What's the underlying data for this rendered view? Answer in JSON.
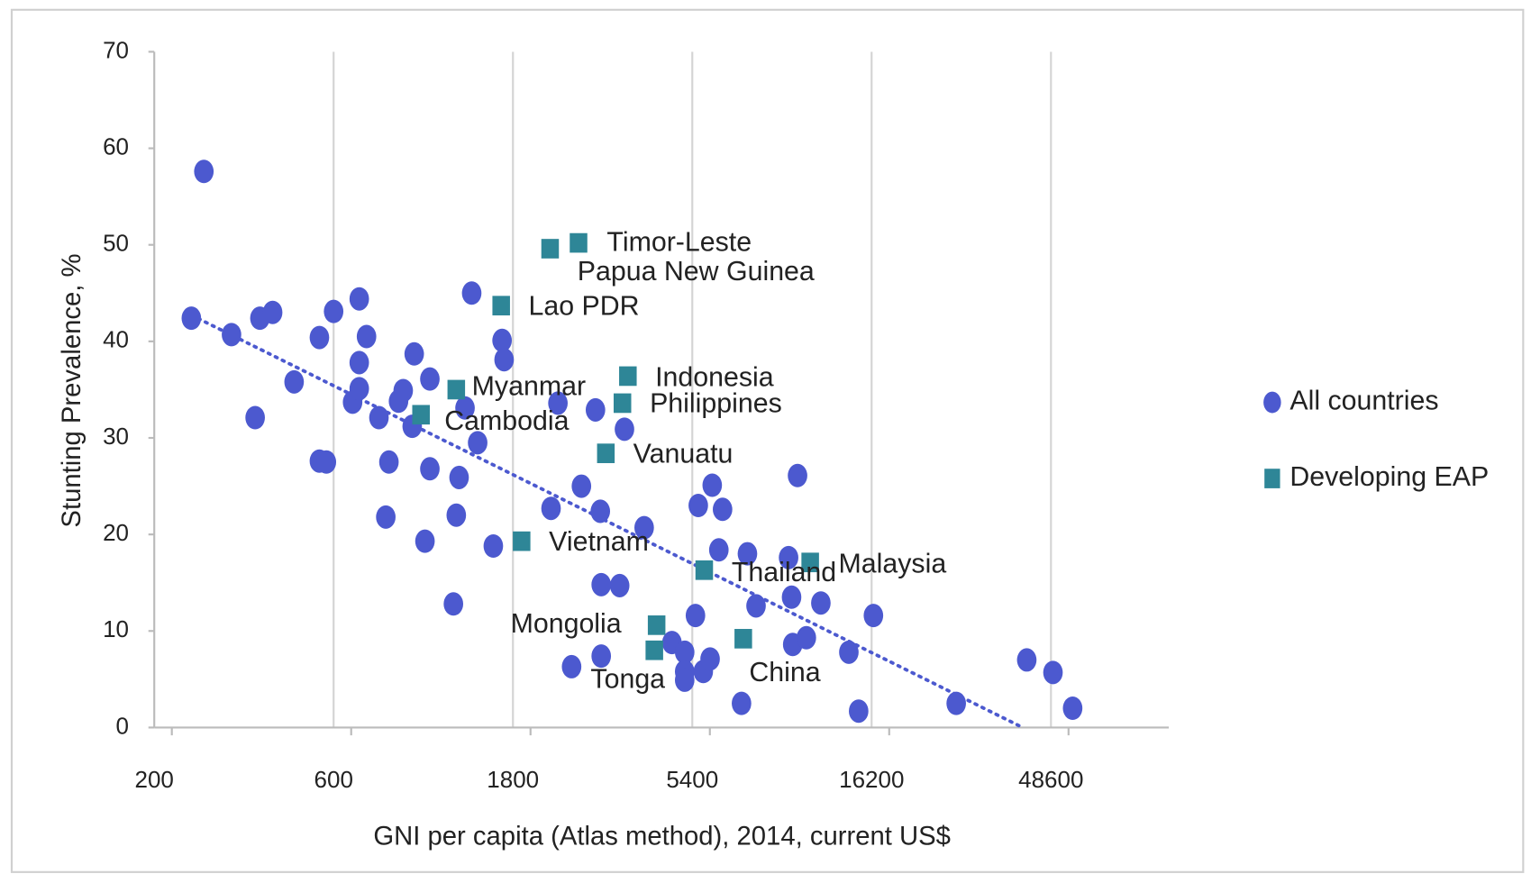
{
  "chart_data": {
    "type": "scatter",
    "x_label": "GNI per capita (Atlas method), 2014, current US$",
    "y_label": "Stunting Prevalence, %",
    "xscale": "log",
    "xlim": [
      200,
      100000
    ],
    "ylim": [
      0,
      70
    ],
    "xticks": [
      200,
      600,
      1800,
      5400,
      16200,
      48600
    ],
    "yticks": [
      0,
      10,
      20,
      30,
      40,
      50,
      60,
      70
    ],
    "grid": "x",
    "legend": "right",
    "series": [
      {
        "name": "All countries",
        "color": "#4c59cf",
        "marker": "circle",
        "trendline": "linear",
        "x": [
          271,
          251,
          321,
          371,
          382,
          413,
          471,
          550,
          550,
          574,
          600,
          674,
          702,
          702,
          702,
          734,
          792,
          826,
          842,
          893,
          919,
          971,
          983,
          1050,
          1082,
          1082,
          1250,
          1272,
          1294,
          1342,
          1398,
          1450,
          1596,
          1684,
          1705,
          2273,
          2371,
          2578,
          2738,
          2984,
          3074,
          3091,
          3091,
          3461,
          3564,
          4021,
          4767,
          5154,
          5154,
          5154,
          5506,
          5602,
          5776,
          6022,
          6101,
          6354,
          6500,
          7300,
          7570,
          7980,
          9740,
          9920,
          9990,
          10290,
          10860,
          11870,
          14090,
          14960,
          16380,
          27200,
          41900,
          49200,
          55500
        ],
        "values": [
          57.6,
          42.4,
          40.7,
          32.1,
          42.4,
          43.0,
          35.8,
          40.4,
          27.6,
          27.5,
          43.1,
          33.7,
          44.4,
          37.8,
          35.1,
          40.5,
          32.1,
          21.8,
          27.5,
          33.8,
          34.9,
          31.2,
          38.7,
          19.3,
          36.1,
          26.8,
          12.8,
          22.0,
          25.9,
          33.1,
          45.0,
          29.5,
          18.8,
          40.1,
          38.1,
          22.7,
          33.6,
          6.3,
          25.0,
          32.9,
          22.4,
          14.8,
          7.4,
          14.7,
          30.9,
          20.7,
          8.8,
          7.8,
          5.8,
          4.9,
          11.6,
          23.0,
          5.8,
          7.1,
          25.1,
          18.4,
          22.6,
          2.5,
          18.0,
          12.6,
          17.6,
          13.5,
          8.6,
          26.1,
          9.3,
          12.9,
          7.8,
          1.7,
          11.6,
          2.5,
          7.0,
          5.7,
          2.0
        ]
      },
      {
        "name": "Developing EAP",
        "color": "#2e8697",
        "marker": "square",
        "x": [
          2690,
          2260,
          1675,
          3640,
          1272,
          3520,
          1025,
          3180,
          1898,
          11120,
          5810,
          4340,
          4280,
          7380
        ],
        "values": [
          50.2,
          49.6,
          43.7,
          36.4,
          35.0,
          33.6,
          32.4,
          28.4,
          19.3,
          17.1,
          16.3,
          10.6,
          8.0,
          9.2
        ],
        "point_labels": [
          "Timor-Leste",
          "Papua New Guinea",
          "Lao PDR",
          "Indonesia",
          "Myanmar",
          "Philippines",
          "Cambodia",
          "Vanuatu",
          "Vietnam",
          "Malaysia",
          "Thailand",
          "Mongolia",
          "Tonga",
          "China"
        ]
      }
    ]
  }
}
